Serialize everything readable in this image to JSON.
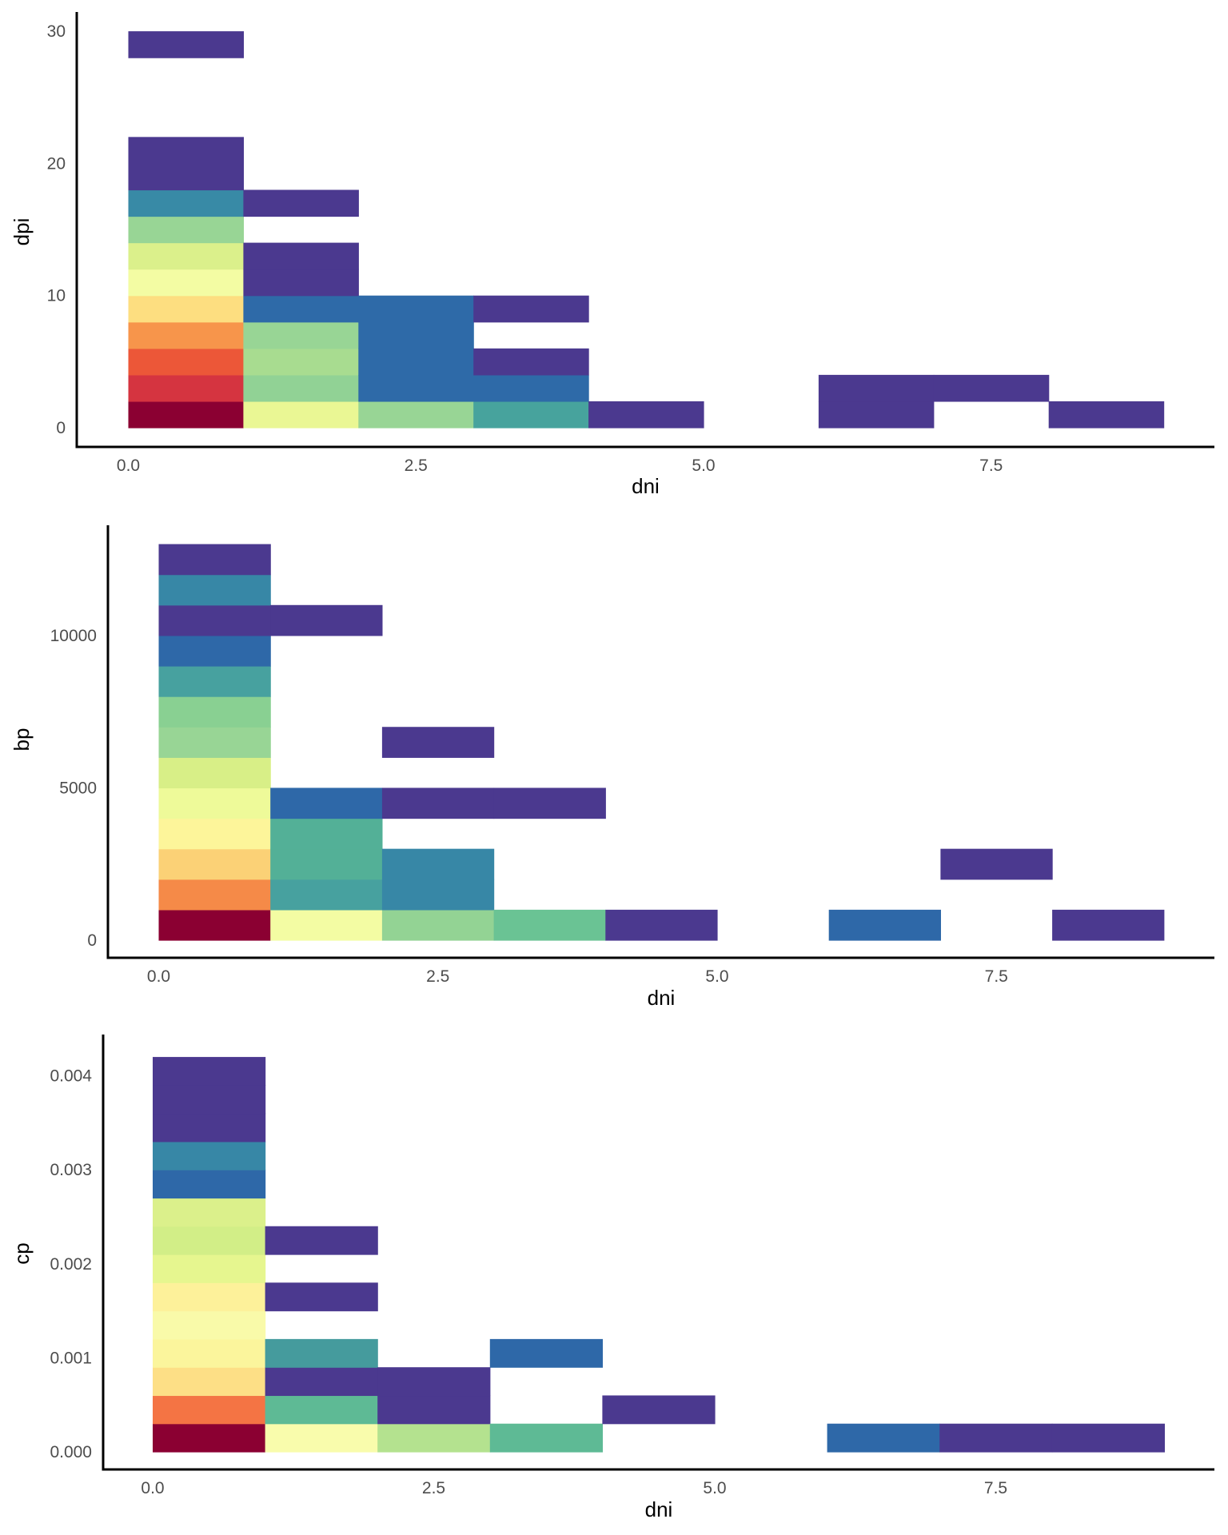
{
  "chart_data": [
    {
      "type": "heatmap",
      "title": "",
      "xlabel": "dni",
      "ylabel": "dpi",
      "xlim": [
        -0.2,
        9.5
      ],
      "ylim": [
        -1.5,
        31.5
      ],
      "x_ticks": [
        0.0,
        2.5,
        5.0,
        7.5
      ],
      "x_tick_labels": [
        "0.0",
        "2.5",
        "5.0",
        "7.5"
      ],
      "y_ticks": [
        0,
        10,
        20,
        30
      ],
      "y_tick_labels": [
        "0",
        "10",
        "20",
        "30"
      ],
      "x_binwidth": 1,
      "y_binwidth": 2,
      "grid": false,
      "legend": "none",
      "cells": [
        {
          "x": 0,
          "y": 0,
          "color": "#8b0032"
        },
        {
          "x": 0,
          "y": 2,
          "color": "#d53440"
        },
        {
          "x": 0,
          "y": 4,
          "color": "#ec5738"
        },
        {
          "x": 0,
          "y": 6,
          "color": "#f7954b"
        },
        {
          "x": 0,
          "y": 8,
          "color": "#fdde80"
        },
        {
          "x": 0,
          "y": 10,
          "color": "#f3fca3"
        },
        {
          "x": 0,
          "y": 12,
          "color": "#dbf08b"
        },
        {
          "x": 0,
          "y": 14,
          "color": "#98d595"
        },
        {
          "x": 0,
          "y": 16,
          "color": "#388aa6"
        },
        {
          "x": 0,
          "y": 18,
          "color": "#4b398f"
        },
        {
          "x": 0,
          "y": 20,
          "color": "#4b398f"
        },
        {
          "x": 0,
          "y": 28,
          "color": "#4b398f"
        },
        {
          "x": 1,
          "y": 0,
          "color": "#eaf794"
        },
        {
          "x": 1,
          "y": 2,
          "color": "#91d295"
        },
        {
          "x": 1,
          "y": 4,
          "color": "#a8dc90"
        },
        {
          "x": 1,
          "y": 6,
          "color": "#98d595"
        },
        {
          "x": 1,
          "y": 8,
          "color": "#2e6aa8"
        },
        {
          "x": 1,
          "y": 10,
          "color": "#4b398f"
        },
        {
          "x": 1,
          "y": 12,
          "color": "#4b398f"
        },
        {
          "x": 1,
          "y": 16,
          "color": "#4b398f"
        },
        {
          "x": 2,
          "y": 0,
          "color": "#98d595"
        },
        {
          "x": 2,
          "y": 2,
          "color": "#2e6aa8"
        },
        {
          "x": 2,
          "y": 4,
          "color": "#2e6aa8"
        },
        {
          "x": 2,
          "y": 6,
          "color": "#2e6aa8"
        },
        {
          "x": 2,
          "y": 8,
          "color": "#2e6aa8"
        },
        {
          "x": 3,
          "y": 0,
          "color": "#47a39d"
        },
        {
          "x": 3,
          "y": 2,
          "color": "#2e6aa8"
        },
        {
          "x": 3,
          "y": 4,
          "color": "#4b398f"
        },
        {
          "x": 3,
          "y": 8,
          "color": "#4b398f"
        },
        {
          "x": 4,
          "y": 0,
          "color": "#4b398f"
        },
        {
          "x": 6,
          "y": 0,
          "color": "#4b398f"
        },
        {
          "x": 6,
          "y": 2,
          "color": "#4b398f"
        },
        {
          "x": 7,
          "y": 2,
          "color": "#4b398f"
        },
        {
          "x": 8,
          "y": 0,
          "color": "#4b398f"
        }
      ]
    },
    {
      "type": "heatmap",
      "title": "",
      "xlabel": "dni",
      "ylabel": "bp",
      "xlim": [
        -0.45,
        9.45
      ],
      "ylim": [
        -600,
        13600
      ],
      "x_ticks": [
        0.0,
        2.5,
        5.0,
        7.5
      ],
      "x_tick_labels": [
        "0.0",
        "2.5",
        "5.0",
        "7.5"
      ],
      "y_ticks": [
        0,
        5000,
        10000
      ],
      "y_tick_labels": [
        "0",
        "5000",
        "10000"
      ],
      "x_binwidth": 1,
      "y_binwidth": 1000,
      "grid": false,
      "legend": "none",
      "cells": [
        {
          "x": 0,
          "y": 0,
          "color": "#8b0032"
        },
        {
          "x": 0,
          "y": 1000,
          "color": "#f58a48"
        },
        {
          "x": 0,
          "y": 2000,
          "color": "#fbd176"
        },
        {
          "x": 0,
          "y": 3000,
          "color": "#fdf59a"
        },
        {
          "x": 0,
          "y": 4000,
          "color": "#eefa99"
        },
        {
          "x": 0,
          "y": 5000,
          "color": "#d8ef87"
        },
        {
          "x": 0,
          "y": 6000,
          "color": "#98d595"
        },
        {
          "x": 0,
          "y": 7000,
          "color": "#89d092"
        },
        {
          "x": 0,
          "y": 8000,
          "color": "#47a19f"
        },
        {
          "x": 0,
          "y": 9000,
          "color": "#2e68a8"
        },
        {
          "x": 0,
          "y": 10000,
          "color": "#4b398f"
        },
        {
          "x": 0,
          "y": 11000,
          "color": "#3787a6"
        },
        {
          "x": 0,
          "y": 12000,
          "color": "#4b398f"
        },
        {
          "x": 1,
          "y": 0,
          "color": "#f3fca3"
        },
        {
          "x": 1,
          "y": 1000,
          "color": "#47a19f"
        },
        {
          "x": 1,
          "y": 2000,
          "color": "#53b097"
        },
        {
          "x": 1,
          "y": 3000,
          "color": "#53b097"
        },
        {
          "x": 1,
          "y": 4000,
          "color": "#2e68a8"
        },
        {
          "x": 1,
          "y": 10000,
          "color": "#4b398f"
        },
        {
          "x": 2,
          "y": 0,
          "color": "#93d394"
        },
        {
          "x": 2,
          "y": 1000,
          "color": "#3787a6"
        },
        {
          "x": 2,
          "y": 2000,
          "color": "#3787a6"
        },
        {
          "x": 2,
          "y": 4000,
          "color": "#4b398f"
        },
        {
          "x": 2,
          "y": 6000,
          "color": "#4b398f"
        },
        {
          "x": 3,
          "y": 0,
          "color": "#6ac394"
        },
        {
          "x": 3,
          "y": 4000,
          "color": "#4b398f"
        },
        {
          "x": 4,
          "y": 0,
          "color": "#4b398f"
        },
        {
          "x": 6,
          "y": 0,
          "color": "#2e68a8"
        },
        {
          "x": 7,
          "y": 2000,
          "color": "#4b398f"
        },
        {
          "x": 8,
          "y": 0,
          "color": "#4b398f"
        }
      ]
    },
    {
      "type": "heatmap",
      "title": "",
      "xlabel": "dni",
      "ylabel": "cp",
      "xlim": [
        -0.45,
        9.45
      ],
      "ylim": [
        -0.0002,
        0.0044
      ],
      "x_ticks": [
        0.0,
        2.5,
        5.0,
        7.5
      ],
      "x_tick_labels": [
        "0.0",
        "2.5",
        "5.0",
        "7.5"
      ],
      "y_ticks": [
        0.0,
        0.001,
        0.002,
        0.003,
        0.004
      ],
      "y_tick_labels": [
        "0.000",
        "0.001",
        "0.002",
        "0.003",
        "0.004"
      ],
      "x_binwidth": 1,
      "y_binwidth": 0.0003,
      "grid": false,
      "legend": "none",
      "cells": [
        {
          "x": 0,
          "y": 0,
          "color": "#8b0032"
        },
        {
          "x": 0,
          "y": 1,
          "color": "#f47444"
        },
        {
          "x": 0,
          "y": 2,
          "color": "#fddf86"
        },
        {
          "x": 0,
          "y": 3,
          "color": "#fbf59c"
        },
        {
          "x": 0,
          "y": 4,
          "color": "#f9faa9"
        },
        {
          "x": 0,
          "y": 5,
          "color": "#fdf19a"
        },
        {
          "x": 0,
          "y": 6,
          "color": "#e6f68f"
        },
        {
          "x": 0,
          "y": 7,
          "color": "#d2ee87"
        },
        {
          "x": 0,
          "y": 8,
          "color": "#dbf08b"
        },
        {
          "x": 0,
          "y": 9,
          "color": "#2e68a8"
        },
        {
          "x": 0,
          "y": 10,
          "color": "#3787a6"
        },
        {
          "x": 0,
          "y": 11,
          "color": "#4b398f"
        },
        {
          "x": 0,
          "y": 12,
          "color": "#4b398f"
        },
        {
          "x": 0,
          "y": 13,
          "color": "#4b398f"
        },
        {
          "x": 1,
          "y": 0,
          "color": "#f9fcac"
        },
        {
          "x": 1,
          "y": 1,
          "color": "#5eba95"
        },
        {
          "x": 1,
          "y": 2,
          "color": "#4b398f"
        },
        {
          "x": 1,
          "y": 3,
          "color": "#459b9d"
        },
        {
          "x": 1,
          "y": 5,
          "color": "#4b398f"
        },
        {
          "x": 1,
          "y": 7,
          "color": "#4b398f"
        },
        {
          "x": 2,
          "y": 0,
          "color": "#b4e28f"
        },
        {
          "x": 2,
          "y": 1,
          "color": "#4b398f"
        },
        {
          "x": 2,
          "y": 2,
          "color": "#4b398f"
        },
        {
          "x": 3,
          "y": 0,
          "color": "#5eba95"
        },
        {
          "x": 3,
          "y": 3,
          "color": "#2e68a8"
        },
        {
          "x": 4,
          "y": 1,
          "color": "#4b398f"
        },
        {
          "x": 6,
          "y": 0,
          "color": "#2e68a8"
        },
        {
          "x": 7,
          "y": 0,
          "color": "#4b398f"
        },
        {
          "x": 8,
          "y": 0,
          "color": "#4b398f"
        }
      ]
    }
  ]
}
